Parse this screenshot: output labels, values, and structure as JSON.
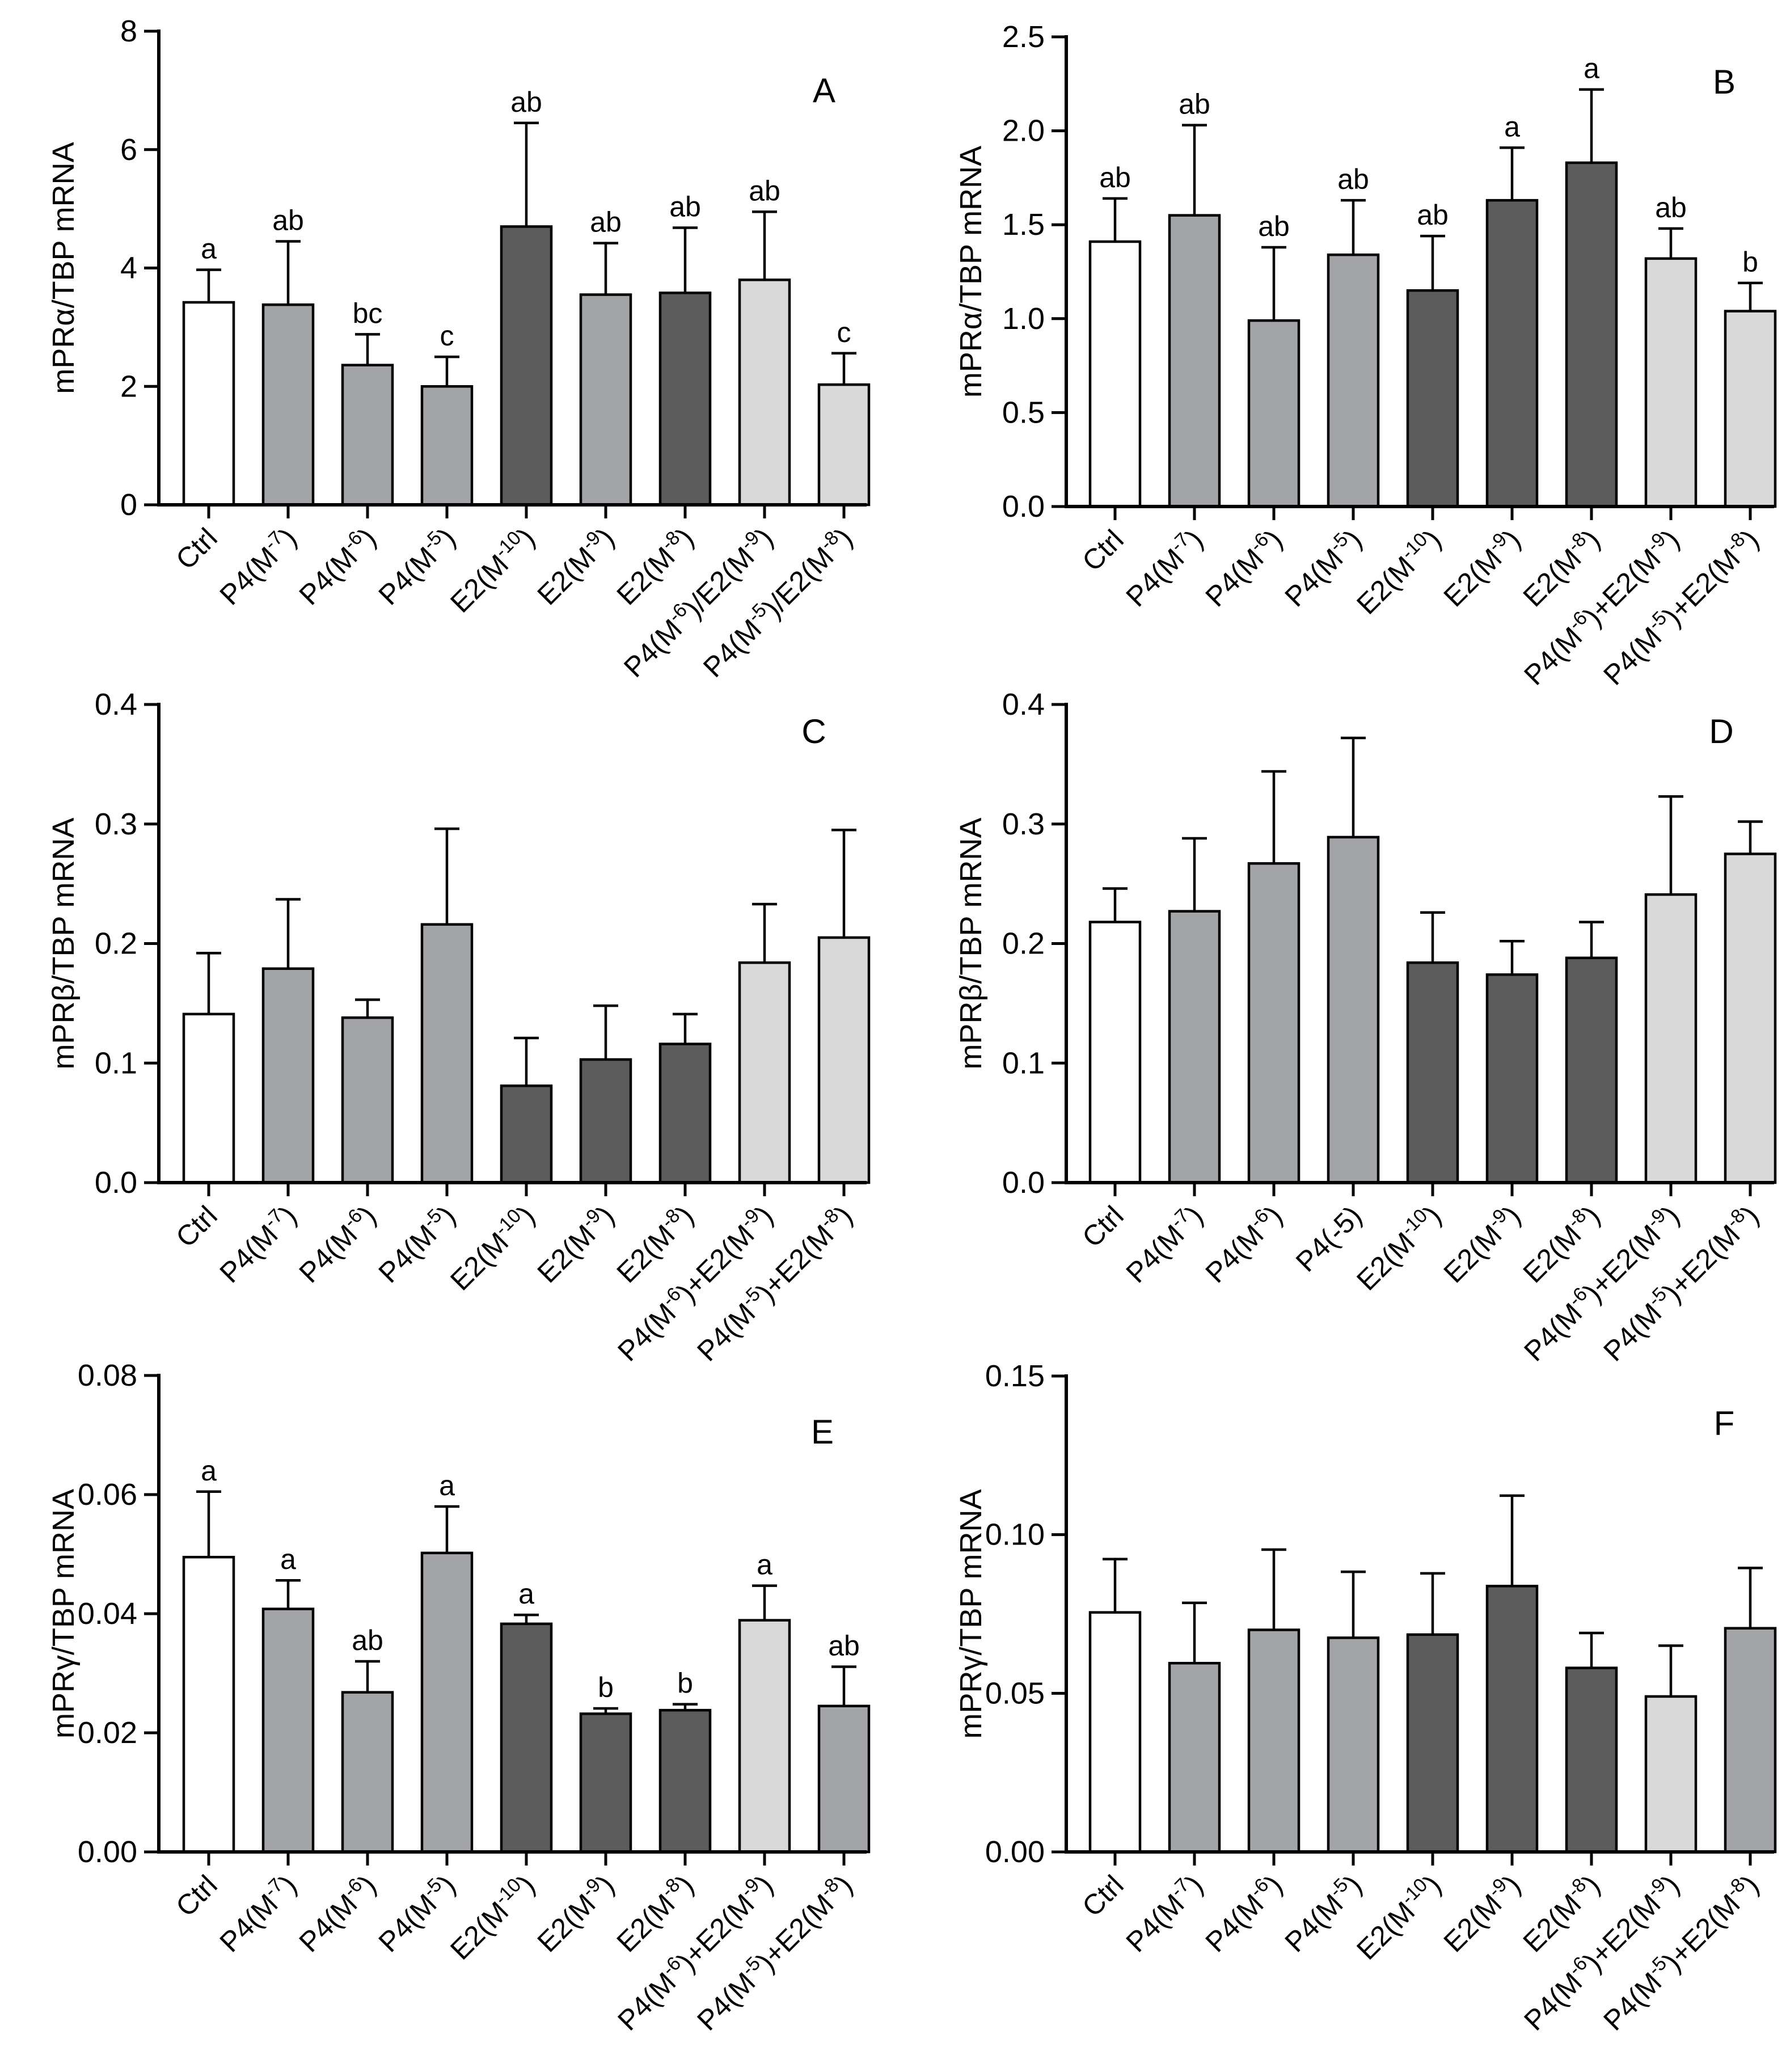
{
  "colors": {
    "white": "#ffffff",
    "light": "#d9d9d9",
    "mid": "#a3a4a8",
    "dark": "#5c5c5c",
    "axis": "#000000"
  },
  "chart_data": [
    {
      "id": "A",
      "type": "bar",
      "panel_label": "A",
      "ylabel": "mPRα/TBP mRNA",
      "ylim": [
        0,
        8
      ],
      "yticks": [
        "0",
        "2",
        "4",
        "6",
        "8"
      ],
      "categories": [
        "Ctrl",
        "P4(M-7)",
        "P4(M-6)",
        "P4(M-5)",
        "E2(M-10)",
        "E2(M-9)",
        "E2(M-8)",
        "P4(M-6)/E2(M-9)",
        "P4(M-5)/E2(M-8)"
      ],
      "category_labels": [
        {
          "base": "Ctrl"
        },
        {
          "base": "P4(M",
          "sup": "-7",
          "tail": ")"
        },
        {
          "base": "P4(M",
          "sup": "-6",
          "tail": ")"
        },
        {
          "base": "P4(M",
          "sup": "-5",
          "tail": ")"
        },
        {
          "base": "E2(M",
          "sup": "-10",
          "tail": ")"
        },
        {
          "base": "E2(M",
          "sup": "-9",
          "tail": ")"
        },
        {
          "base": "E2(M",
          "sup": "-8",
          "tail": ")"
        },
        {
          "base": "P4(M",
          "sup": "-6",
          "tail": ")/E2(M",
          "sup2": "-9",
          "tail2": ")"
        },
        {
          "base": "P4(M",
          "sup": "-5",
          "tail": ")/E2(M",
          "sup2": "-8",
          "tail2": ")"
        }
      ],
      "values": [
        3.42,
        3.38,
        2.36,
        2.0,
        4.7,
        3.55,
        3.58,
        3.8,
        2.03
      ],
      "errors": [
        0.55,
        1.07,
        0.52,
        0.5,
        1.75,
        0.87,
        1.1,
        1.15,
        0.53
      ],
      "colors": [
        "white",
        "mid",
        "mid",
        "mid",
        "dark",
        "mid",
        "dark",
        "light",
        "light"
      ],
      "significance": [
        "a",
        "ab",
        "bc",
        "c",
        "ab",
        "ab",
        "ab",
        "ab",
        "c"
      ]
    },
    {
      "id": "B",
      "type": "bar",
      "panel_label": "B",
      "ylabel": "mPRα/TBP mRNA",
      "ylim": [
        0,
        2.5
      ],
      "yticks": [
        "0.0",
        "0.5",
        "1.0",
        "1.5",
        "2.0",
        "2.5"
      ],
      "categories": [
        "Ctrl",
        "P4(M-7)",
        "P4(M-6)",
        "P4(M-5)",
        "E2(M-10)",
        "E2(M-9)",
        "E2(M-8)",
        "P4(M-6)+E2(M-9)",
        "P4(M-5)+E2(M-8)"
      ],
      "category_labels": [
        {
          "base": "Ctrl"
        },
        {
          "base": "P4(M",
          "sup": "-7",
          "tail": ")"
        },
        {
          "base": "P4(M",
          "sup": "-6",
          "tail": ")"
        },
        {
          "base": "P4(M",
          "sup": "-5",
          "tail": ")"
        },
        {
          "base": "E2(M",
          "sup": "-10",
          "tail": ")"
        },
        {
          "base": "E2(M",
          "sup": "-9",
          "tail": ")"
        },
        {
          "base": "E2(M",
          "sup": "-8",
          "tail": ")"
        },
        {
          "base": "P4(M",
          "sup": "-6",
          "tail": ")+E2(M",
          "sup2": "-9",
          "tail2": ")"
        },
        {
          "base": "P4(M",
          "sup": "-5",
          "tail": ")+E2(M",
          "sup2": "-8",
          "tail2": ")"
        }
      ],
      "values": [
        1.41,
        1.55,
        0.99,
        1.34,
        1.15,
        1.63,
        1.83,
        1.32,
        1.04
      ],
      "errors": [
        0.23,
        0.48,
        0.39,
        0.29,
        0.29,
        0.28,
        0.39,
        0.16,
        0.15
      ],
      "colors": [
        "white",
        "mid",
        "mid",
        "mid",
        "dark",
        "dark",
        "dark",
        "light",
        "light"
      ],
      "significance": [
        "ab",
        "ab",
        "ab",
        "ab",
        "ab",
        "a",
        "a",
        "ab",
        "b"
      ]
    },
    {
      "id": "C",
      "type": "bar",
      "panel_label": "C",
      "ylabel": "mPRβ/TBP mRNA",
      "ylim": [
        0,
        0.4
      ],
      "yticks": [
        "0.0",
        "0.1",
        "0.2",
        "0.3",
        "0.4"
      ],
      "categories": [
        "Ctrl",
        "P4(M-7)",
        "P4(M-6)",
        "P4(M-5)",
        "E2(M-10)",
        "E2(M-9)",
        "E2(M-8)",
        "P4(M-6)+E2(M-9)",
        "P4(M-5)+E2(M-8)"
      ],
      "category_labels": [
        {
          "base": "Ctrl"
        },
        {
          "base": "P4(M",
          "sup": "-7",
          "tail": ")"
        },
        {
          "base": "P4(M",
          "sup": "-6",
          "tail": ")"
        },
        {
          "base": "P4(M",
          "sup": "-5",
          "tail": ")"
        },
        {
          "base": "E2(M",
          "sup": "-10",
          "tail": ")"
        },
        {
          "base": "E2(M",
          "sup": "-9",
          "tail": ")"
        },
        {
          "base": "E2(M",
          "sup": "-8",
          "tail": ")"
        },
        {
          "base": "P4(M",
          "sup": "-6",
          "tail": ")+E2(M",
          "sup2": "-9",
          "tail2": ")"
        },
        {
          "base": "P4(M",
          "sup": "-5",
          "tail": ")+E2(M",
          "sup2": "-8",
          "tail2": ")"
        }
      ],
      "values": [
        0.141,
        0.179,
        0.138,
        0.216,
        0.081,
        0.103,
        0.116,
        0.184,
        0.205
      ],
      "errors": [
        0.051,
        0.058,
        0.015,
        0.08,
        0.04,
        0.045,
        0.025,
        0.049,
        0.09
      ],
      "colors": [
        "white",
        "mid",
        "mid",
        "mid",
        "dark",
        "dark",
        "dark",
        "light",
        "light"
      ],
      "significance": []
    },
    {
      "id": "D",
      "type": "bar",
      "panel_label": "D",
      "ylabel": "mPRβ/TBP mRNA",
      "ylim": [
        0,
        0.4
      ],
      "yticks": [
        "0.0",
        "0.1",
        "0.2",
        "0.3",
        "0.4"
      ],
      "categories": [
        "Ctrl",
        "P4(M-7)",
        "P4(M-6)",
        "P4(-5)",
        "E2(M-10)",
        "E2(M-9)",
        "E2(M-8)",
        "P4(M-6)+E2(M-9)",
        "P4(M-5)+E2(M-8)"
      ],
      "category_labels": [
        {
          "base": "Ctrl"
        },
        {
          "base": "P4(M",
          "sup": "-7",
          "tail": ")"
        },
        {
          "base": "P4(M",
          "sup": "-6",
          "tail": ")"
        },
        {
          "base": "P4(-5)"
        },
        {
          "base": "E2(M",
          "sup": "-10",
          "tail": ")"
        },
        {
          "base": "E2(M",
          "sup": "-9",
          "tail": ")"
        },
        {
          "base": "E2(M",
          "sup": "-8",
          "tail": ")"
        },
        {
          "base": "P4(M",
          "sup": "-6",
          "tail": ")+E2(M",
          "sup2": "-9",
          "tail2": ")"
        },
        {
          "base": "P4(M",
          "sup": "-5",
          "tail": ")+E2(M",
          "sup2": "-8",
          "tail2": ")"
        }
      ],
      "values": [
        0.218,
        0.227,
        0.267,
        0.289,
        0.184,
        0.174,
        0.188,
        0.241,
        0.275
      ],
      "errors": [
        0.028,
        0.061,
        0.077,
        0.083,
        0.042,
        0.028,
        0.03,
        0.082,
        0.027
      ],
      "colors": [
        "white",
        "mid",
        "mid",
        "mid",
        "dark",
        "dark",
        "dark",
        "light",
        "light"
      ],
      "significance": []
    },
    {
      "id": "E",
      "type": "bar",
      "panel_label": "E",
      "ylabel": "mPRγ/TBP mRNA",
      "ylim": [
        0,
        0.08
      ],
      "yticks": [
        "0.00",
        "0.02",
        "0.04",
        "0.06",
        "0.08"
      ],
      "categories": [
        "Ctrl",
        "P4(M-7)",
        "P4(M-6)",
        "P4(M-5)",
        "E2(M-10)",
        "E2(M-9)",
        "E2(M-8)",
        "P4(M-6)+E2(M-9)",
        "P4(M-5)+E2(M-8)"
      ],
      "category_labels": [
        {
          "base": "Ctrl"
        },
        {
          "base": "P4(M",
          "sup": "-7",
          "tail": ")"
        },
        {
          "base": "P4(M",
          "sup": "-6",
          "tail": ")"
        },
        {
          "base": "P4(M",
          "sup": "-5",
          "tail": ")"
        },
        {
          "base": "E2(M",
          "sup": "-10",
          "tail": ")"
        },
        {
          "base": "E2(M",
          "sup": "-9",
          "tail": ")"
        },
        {
          "base": "E2(M",
          "sup": "-8",
          "tail": ")"
        },
        {
          "base": "P4(M",
          "sup": "-6",
          "tail": ")+E2(M",
          "sup2": "-9",
          "tail2": ")"
        },
        {
          "base": "P4(M",
          "sup": "-5",
          "tail": ")+E2(M",
          "sup2": "-8",
          "tail2": ")"
        }
      ],
      "values": [
        0.0495,
        0.0408,
        0.0268,
        0.0502,
        0.0383,
        0.0232,
        0.0238,
        0.0389,
        0.0245
      ],
      "errors": [
        0.011,
        0.0048,
        0.0052,
        0.0078,
        0.0015,
        0.0009,
        0.001,
        0.0058,
        0.0066
      ],
      "colors": [
        "white",
        "mid",
        "mid",
        "mid",
        "dark",
        "dark",
        "dark",
        "light",
        "mid"
      ],
      "significance": [
        "a",
        "a",
        "ab",
        "a",
        "a",
        "b",
        "b",
        "a",
        "ab"
      ]
    },
    {
      "id": "F",
      "type": "bar",
      "panel_label": "F",
      "ylabel": "mPRγ/TBP mRNA",
      "ylim": [
        0,
        0.15
      ],
      "yticks": [
        "0.00",
        "0.05",
        "0.10",
        "0.15"
      ],
      "categories": [
        "Ctrl",
        "P4(M-7)",
        "P4(M-6)",
        "P4(M-5)",
        "E2(M-10)",
        "E2(M-9)",
        "E2(M-8)",
        "P4(M-6)+E2(M-9)",
        "P4(M-5)+E2(M-8)"
      ],
      "category_labels": [
        {
          "base": "Ctrl"
        },
        {
          "base": "P4(M",
          "sup": "-7",
          "tail": ")"
        },
        {
          "base": "P4(M",
          "sup": "-6",
          "tail": ")"
        },
        {
          "base": "P4(M",
          "sup": "-5",
          "tail": ")"
        },
        {
          "base": "E2(M",
          "sup": "-10",
          "tail": ")"
        },
        {
          "base": "E2(M",
          "sup": "-9",
          "tail": ")"
        },
        {
          "base": "E2(M",
          "sup": "-8",
          "tail": ")"
        },
        {
          "base": "P4(M",
          "sup": "-6",
          "tail": ")+E2(M",
          "sup2": "-9",
          "tail2": ")"
        },
        {
          "base": "P4(M",
          "sup": "-5",
          "tail": ")+E2(M",
          "sup2": "-8",
          "tail2": ")"
        }
      ],
      "values": [
        0.0755,
        0.0595,
        0.07,
        0.0675,
        0.0685,
        0.0838,
        0.058,
        0.049,
        0.0705
      ],
      "errors": [
        0.0168,
        0.019,
        0.0253,
        0.0208,
        0.0193,
        0.0285,
        0.011,
        0.016,
        0.019
      ],
      "colors": [
        "white",
        "mid",
        "mid",
        "mid",
        "dark",
        "dark",
        "dark",
        "light",
        "mid"
      ],
      "significance": []
    }
  ]
}
